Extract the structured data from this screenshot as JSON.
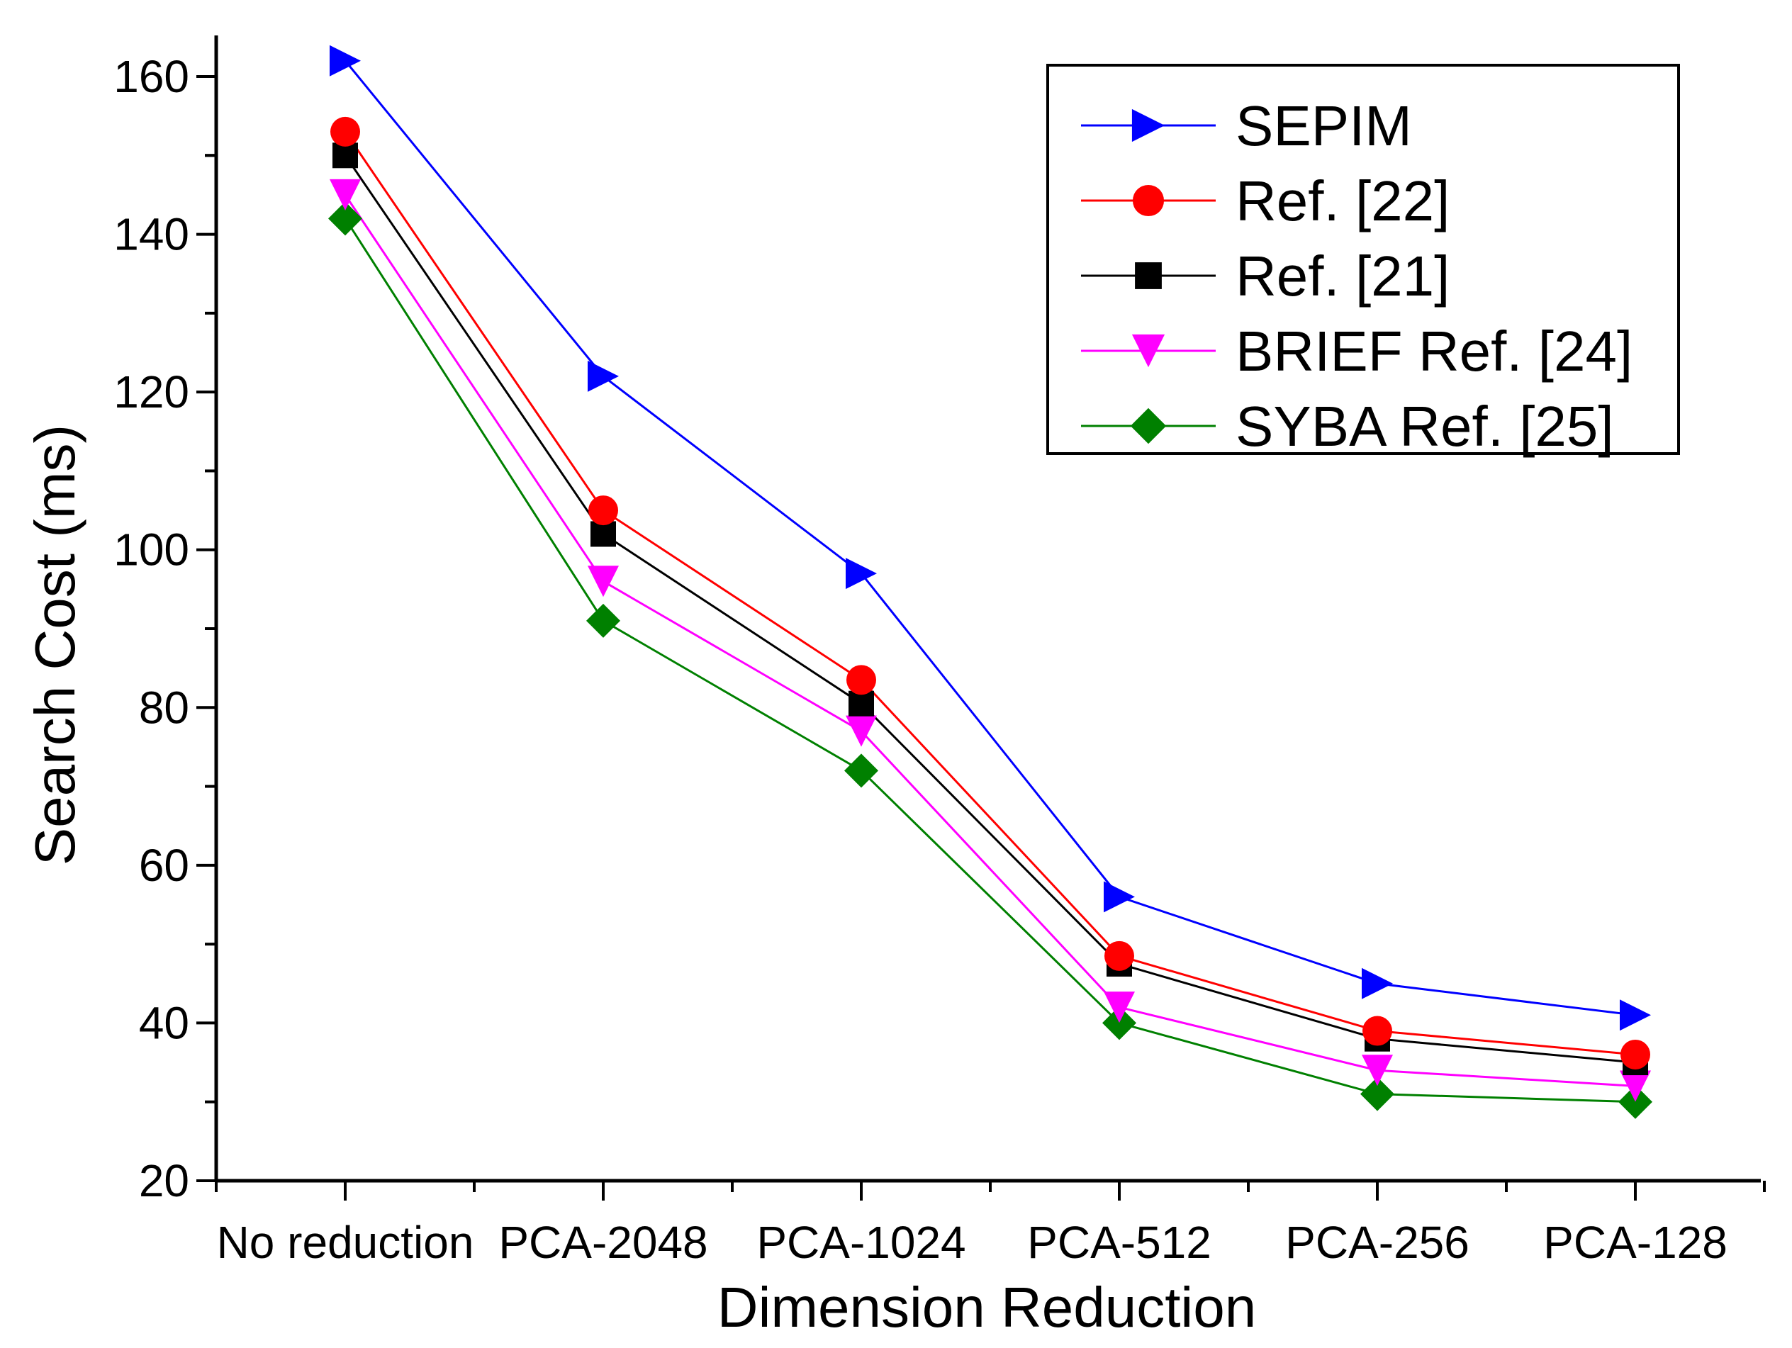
{
  "chart_data": {
    "type": "line",
    "title": "",
    "xlabel": "Dimension Reduction",
    "ylabel": "Search Cost (ms)",
    "categories": [
      "No reduction",
      "PCA-2048",
      "PCA-1024",
      "PCA-512",
      "PCA-256",
      "PCA-128"
    ],
    "ylim": [
      20,
      165
    ],
    "yticks": [
      20,
      40,
      60,
      80,
      100,
      120,
      140,
      160
    ],
    "grid": false,
    "legend_position": "top-right",
    "series": [
      {
        "name": "SEPIM",
        "marker": "triangle-right",
        "color": "#0000ff",
        "values": [
          162,
          122,
          97,
          56,
          45,
          41
        ]
      },
      {
        "name": "Ref. [22]",
        "marker": "circle",
        "color": "#ff0000",
        "values": [
          153,
          105,
          83.5,
          48.5,
          39,
          36
        ]
      },
      {
        "name": "Ref. [21]",
        "marker": "square",
        "color": "#000000",
        "values": [
          150,
          102,
          80.5,
          47.5,
          38,
          35
        ]
      },
      {
        "name": "BRIEF Ref. [24]",
        "marker": "triangle-down",
        "color": "#ff00ff",
        "values": [
          145,
          96,
          77,
          42,
          34,
          32
        ]
      },
      {
        "name": "SYBA Ref. [25]",
        "marker": "diamond",
        "color": "#008000",
        "values": [
          142,
          91,
          72,
          40,
          31,
          30
        ]
      }
    ]
  }
}
